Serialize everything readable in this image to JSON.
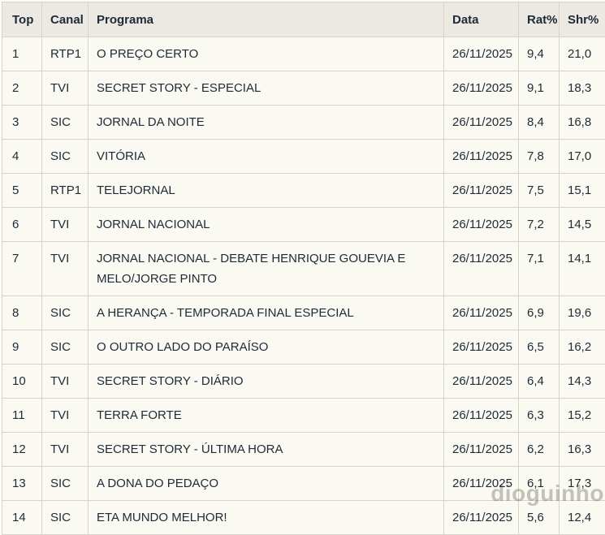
{
  "page": {
    "watermark": "dioguinho"
  },
  "colors": {
    "background": "#fdfdf9",
    "table_background": "#fafaf2",
    "header_background": "#ebe9e1",
    "border": "#d5d3cb",
    "text": "#1d2a37",
    "watermark": "#8e8e8c"
  },
  "table": {
    "columns": [
      {
        "key": "top",
        "label": "Top"
      },
      {
        "key": "canal",
        "label": "Canal"
      },
      {
        "key": "programa",
        "label": "Programa"
      },
      {
        "key": "data",
        "label": "Data"
      },
      {
        "key": "rat",
        "label": "Rat%"
      },
      {
        "key": "shr",
        "label": "Shr%"
      }
    ],
    "rows": [
      [
        "1",
        "RTP1",
        "O PREÇO CERTO",
        "26/11/2025",
        "9,4",
        "21,0"
      ],
      [
        "2",
        "TVI",
        "SECRET STORY - ESPECIAL",
        "26/11/2025",
        "9,1",
        "18,3"
      ],
      [
        "3",
        "SIC",
        "JORNAL DA NOITE",
        "26/11/2025",
        "8,4",
        "16,8"
      ],
      [
        "4",
        "SIC",
        "VITÓRIA",
        "26/11/2025",
        "7,8",
        "17,0"
      ],
      [
        "5",
        "RTP1",
        "TELEJORNAL",
        "26/11/2025",
        "7,5",
        "15,1"
      ],
      [
        "6",
        "TVI",
        "JORNAL NACIONAL",
        "26/11/2025",
        "7,2",
        "14,5"
      ],
      [
        "7",
        "TVI",
        "JORNAL NACIONAL - DEBATE HENRIQUE GOUEVIA E MELO/JORGE PINTO",
        "26/11/2025",
        "7,1",
        "14,1"
      ],
      [
        "8",
        "SIC",
        "A HERANÇA - TEMPORADA FINAL ESPECIAL",
        "26/11/2025",
        "6,9",
        "19,6"
      ],
      [
        "9",
        "SIC",
        "O OUTRO LADO DO PARAÍSO",
        "26/11/2025",
        "6,5",
        "16,2"
      ],
      [
        "10",
        "TVI",
        "SECRET STORY - DIÁRIO",
        "26/11/2025",
        "6,4",
        "14,3"
      ],
      [
        "11",
        "TVI",
        "TERRA FORTE",
        "26/11/2025",
        "6,3",
        "15,2"
      ],
      [
        "12",
        "TVI",
        "SECRET STORY - ÚLTIMA HORA",
        "26/11/2025",
        "6,2",
        "16,3"
      ],
      [
        "13",
        "SIC",
        "A DONA DO PEDAÇO",
        "26/11/2025",
        "6,1",
        "17,3"
      ],
      [
        "14",
        "SIC",
        "ETA MUNDO MELHOR!",
        "26/11/2025",
        "5,6",
        "12,4"
      ]
    ]
  }
}
